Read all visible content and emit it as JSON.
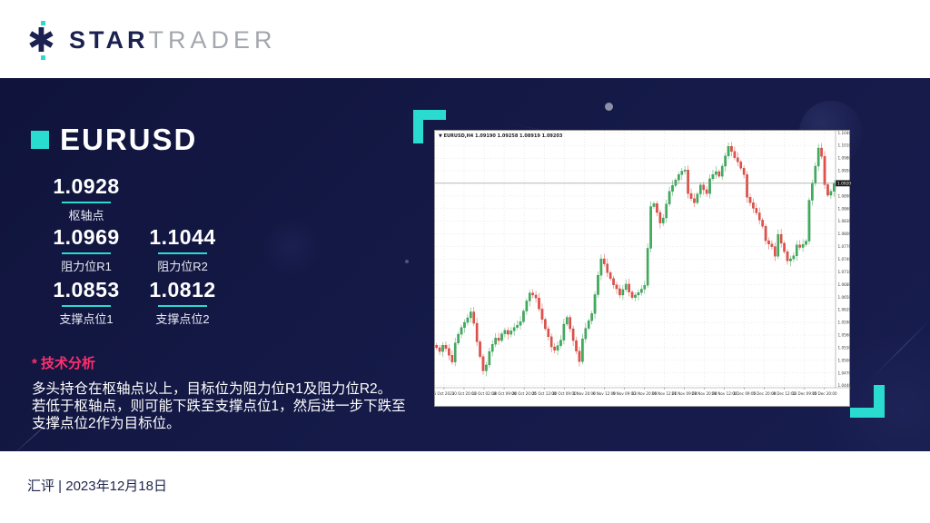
{
  "header": {
    "brand_bold": "STAR",
    "brand_light": "TRADER"
  },
  "panel": {
    "symbol": "EURUSD",
    "pivot": {
      "value": "1.0928",
      "label": "枢轴点"
    },
    "levels": [
      {
        "value": "1.0969",
        "label": "阻力位R1"
      },
      {
        "value": "1.1044",
        "label": "阻力位R2"
      },
      {
        "value": "1.0853",
        "label": "支撑点位1"
      },
      {
        "value": "1.0812",
        "label": "支撑点位2"
      }
    ],
    "analysis_title": "* 技术分析",
    "analysis_lines": [
      "多头持仓在枢轴点以上，目标位为阻力位R1及阻力位R2。",
      "若低于枢轴点，则可能下跌至支撑点位1，然后进一步下跌至",
      "支撑点位2作为目标位。"
    ]
  },
  "footer": {
    "text": "汇评 | 2023年12月18日"
  },
  "colors": {
    "accent_cyan": "#29dccf",
    "pink": "#ff2e6e",
    "navy": "#141847",
    "logo_navy": "#1b2150",
    "logo_gray": "#a3a7ad"
  },
  "chart_data": {
    "type": "candlestick",
    "title": "EURUSD,H4 1.09190 1.09258 1.08919 1.09203",
    "symbol": "EURUSD",
    "timeframe": "H4",
    "ylim": [
      1.0435,
      1.1045
    ],
    "y_ticks": [
      "1.04400",
      "1.04700",
      "1.05000",
      "1.05300",
      "1.05600",
      "1.05900",
      "1.06200",
      "1.06500",
      "1.06800",
      "1.07100",
      "1.07400",
      "1.07700",
      "1.08000",
      "1.08300",
      "1.08600",
      "1.08900",
      "1.09200",
      "1.09500",
      "1.09800",
      "1.10100",
      "1.10400"
    ],
    "x_ticks": [
      "6 Oct 2023",
      "10 Oct 20:00",
      "13 Oct 02:00",
      "18 Oct 09:00",
      "20 Oct 20:00",
      "25 Oct 12:00",
      "30 Oct 09:00",
      "1 Nov 20:00",
      "6 Nov 12:00",
      "9 Nov 09:00",
      "13 Nov 20:00",
      "16 Nov 12:00",
      "21 Nov 09:00",
      "23 Nov 20:00",
      "28 Nov 12:00",
      "1 Dec 09:00",
      "5 Dec 20:00",
      "8 Dec 12:00",
      "13 Dec 09:00",
      "15 Dec 20:00"
    ],
    "current_price": 1.09203,
    "current_price_label": "1.09203",
    "open_first": 1.0536,
    "up_color": "#3fae5c",
    "down_color": "#e5504a",
    "grid": "dotted",
    "closes": [
      1.053,
      1.0521,
      1.0536,
      1.0528,
      1.0512,
      1.0496,
      1.0541,
      1.0562,
      1.0578,
      1.059,
      1.0601,
      1.0615,
      1.0588,
      1.0544,
      1.0509,
      1.0475,
      1.0489,
      1.0521,
      1.0538,
      1.0553,
      1.0547,
      1.0563,
      1.0571,
      1.0562,
      1.057,
      1.0578,
      1.0583,
      1.0592,
      1.0617,
      1.0641,
      1.066,
      1.0655,
      1.0648,
      1.0622,
      1.0597,
      1.0575,
      1.0556,
      1.0532,
      1.0524,
      1.0535,
      1.0548,
      1.0586,
      1.0602,
      1.0575,
      1.0547,
      1.0522,
      1.0497,
      1.0551,
      1.0576,
      1.0594,
      1.0611,
      1.0656,
      1.0702,
      1.0741,
      1.0729,
      1.0708,
      1.0694,
      1.0679,
      1.067,
      1.0655,
      1.0668,
      1.0681,
      1.0662,
      1.0649,
      1.0655,
      1.0661,
      1.0669,
      1.0678,
      1.0766,
      1.0865,
      1.0872,
      1.0851,
      1.0826,
      1.0838,
      1.0871,
      1.0901,
      1.0915,
      1.0928,
      1.0941,
      1.0949,
      1.0952,
      1.0896,
      1.0884,
      1.0874,
      1.0895,
      1.0916,
      1.0905,
      1.0896,
      1.0931,
      1.0941,
      1.0948,
      1.0937,
      1.0961,
      1.0985,
      1.1008,
      1.0996,
      1.0981,
      1.0971,
      1.0956,
      1.0941,
      1.0887,
      1.0874,
      1.0861,
      1.085,
      1.0833,
      1.0818,
      1.0784,
      1.0776,
      1.077,
      1.0747,
      1.0799,
      1.0778,
      1.0758,
      1.0736,
      1.0741,
      1.0748,
      1.0774,
      1.0768,
      1.0775,
      1.0783,
      1.088,
      1.0921,
      1.0961,
      1.1004,
      1.0984,
      1.0917,
      1.0892,
      1.0901,
      1.092
    ]
  }
}
